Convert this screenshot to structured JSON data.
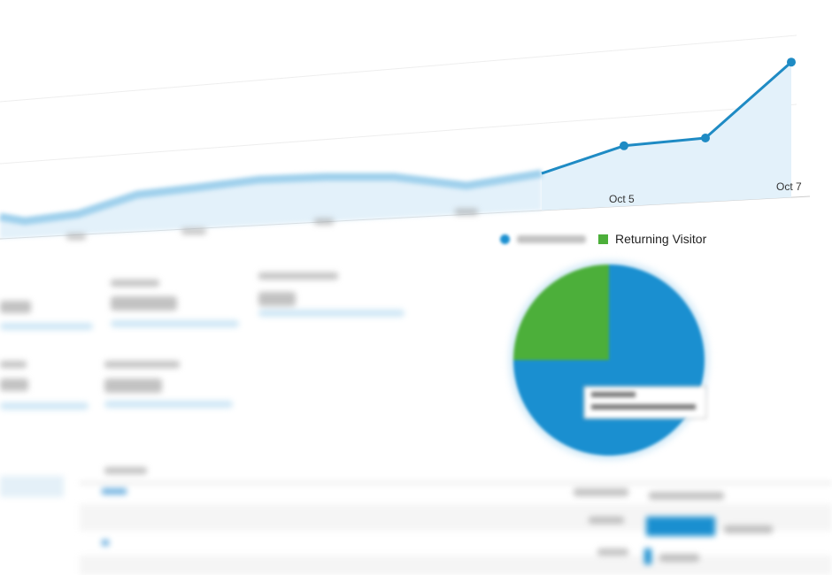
{
  "chart_data": [
    {
      "type": "area",
      "x_tick_labels": [
        "Oct 5",
        "Oct 7"
      ],
      "series": [
        {
          "values": [
            4.5,
            2.3,
            5.9,
            15.9,
            19.5,
            23.6,
            25,
            25,
            20.5,
            26.8,
            41,
            45,
            84
          ],
          "color": "#1f8bc4"
        }
      ],
      "grid": true
    },
    {
      "type": "pie",
      "legend": [
        "",
        "Returning Visitor"
      ],
      "legend_placement": "top",
      "values": [
        75,
        25
      ],
      "colors": [
        "#1a8fd0",
        "#4caf3a"
      ]
    }
  ],
  "colors": {
    "accent": "#1f8bc4",
    "area_fill": "#e3f1fa",
    "returning": "#4caf3a",
    "new": "#1a8fd0"
  },
  "legend": {
    "returning_label": "Returning Visitor"
  },
  "ticks": {
    "oct5": "Oct 5",
    "oct7": "Oct 7"
  }
}
